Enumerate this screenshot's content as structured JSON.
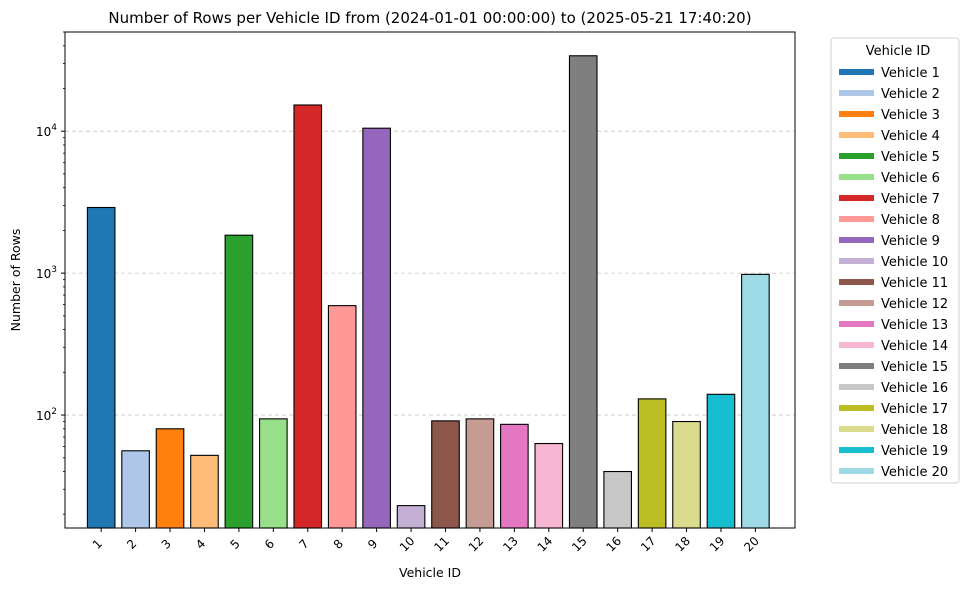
{
  "chart_data": {
    "type": "bar",
    "title": "Number of Rows per Vehicle ID from (2024-01-01 00:00:00) to (2025-05-21 17:40:20)",
    "xlabel": "Vehicle ID",
    "ylabel": "Number of Rows",
    "yscale": "log",
    "ylim": [
      16,
      50000
    ],
    "yticks": [
      100,
      1000,
      10000
    ],
    "ytick_labels": [
      {
        "base": "10",
        "exp": "2"
      },
      {
        "base": "10",
        "exp": "3"
      },
      {
        "base": "10",
        "exp": "4"
      }
    ],
    "grid": "y-dashed",
    "categories": [
      "1",
      "2",
      "3",
      "4",
      "5",
      "6",
      "7",
      "8",
      "9",
      "10",
      "11",
      "12",
      "13",
      "14",
      "15",
      "16",
      "17",
      "18",
      "19",
      "20"
    ],
    "values": [
      2900,
      56,
      80,
      52,
      1850,
      94,
      15300,
      590,
      10500,
      23,
      91,
      94,
      86,
      63,
      34000,
      40,
      130,
      90,
      140,
      980
    ],
    "colors": [
      "#1f77b4",
      "#aec7e8",
      "#ff7f0e",
      "#ffbb78",
      "#2ca02c",
      "#98df8a",
      "#d62728",
      "#ff9896",
      "#9467bd",
      "#c5b0d5",
      "#8c564b",
      "#c49c94",
      "#e377c2",
      "#f7b6d2",
      "#7f7f7f",
      "#c7c7c7",
      "#bcbd22",
      "#dbdb8d",
      "#17becf",
      "#9edae5"
    ],
    "legend": {
      "title": "Vehicle ID",
      "placement": "outside-right",
      "entries": [
        "Vehicle 1",
        "Vehicle 2",
        "Vehicle 3",
        "Vehicle 4",
        "Vehicle 5",
        "Vehicle 6",
        "Vehicle 7",
        "Vehicle 8",
        "Vehicle 9",
        "Vehicle 10",
        "Vehicle 11",
        "Vehicle 12",
        "Vehicle 13",
        "Vehicle 14",
        "Vehicle 15",
        "Vehicle 16",
        "Vehicle 17",
        "Vehicle 18",
        "Vehicle 19",
        "Vehicle 20"
      ]
    }
  }
}
